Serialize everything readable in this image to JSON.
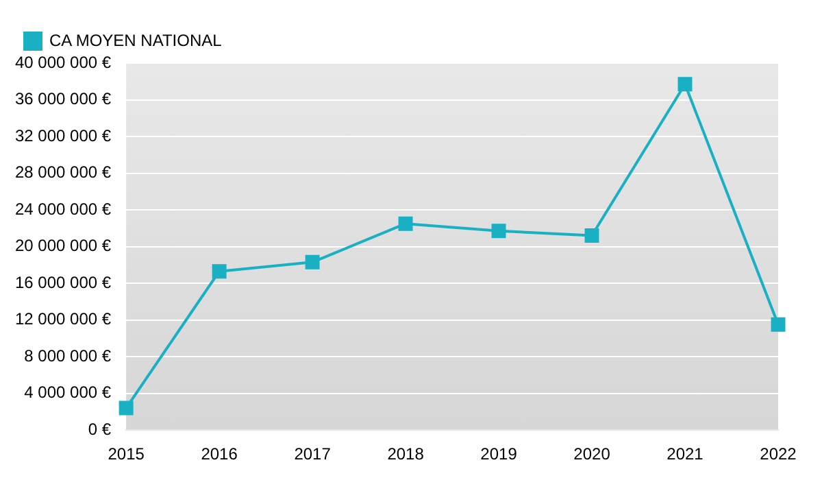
{
  "chart_data": {
    "type": "line",
    "categories": [
      "2015",
      "2016",
      "2017",
      "2018",
      "2019",
      "2020",
      "2021",
      "2022"
    ],
    "series": [
      {
        "name": "CA MOYEN NATIONAL",
        "color": "#1ab0c4",
        "values": [
          2400000,
          17300000,
          18300000,
          22500000,
          21700000,
          21200000,
          37700000,
          11500000
        ]
      }
    ],
    "ylim": [
      0,
      40000000
    ],
    "yticks": [
      {
        "value": 0,
        "label": "0 €"
      },
      {
        "value": 4000000,
        "label": "4 000 000 €"
      },
      {
        "value": 8000000,
        "label": "8 000 000 €"
      },
      {
        "value": 12000000,
        "label": "12 000 000 €"
      },
      {
        "value": 16000000,
        "label": "16 000 000 €"
      },
      {
        "value": 20000000,
        "label": "20 000 000 €"
      },
      {
        "value": 24000000,
        "label": "24 000 000 €"
      },
      {
        "value": 28000000,
        "label": "28 000 000 €"
      },
      {
        "value": 32000000,
        "label": "32 000 000 €"
      },
      {
        "value": 36000000,
        "label": "36 000 000 €"
      },
      {
        "value": 40000000,
        "label": "40 000 000 €"
      }
    ],
    "grid": "y",
    "legend": "top left",
    "marker": "square",
    "line_style": "solid"
  }
}
